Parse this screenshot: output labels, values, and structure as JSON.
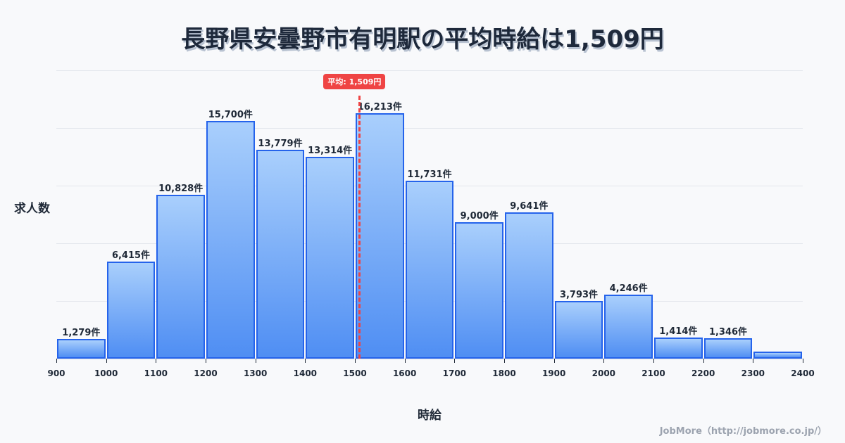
{
  "title": "長野県安曇野市有明駅の平均時給は1,509円",
  "y_axis_label": "求人数",
  "x_axis_label": "時給",
  "footer": "JobMore（http://jobmore.co.jp/）",
  "mean": {
    "value": 1509,
    "label": "平均: 1,509円",
    "color": "#ef4444"
  },
  "colors": {
    "bar_border": "#2563eb",
    "bar_top": "#a9cffc",
    "bar_bottom": "#4f8ef3",
    "background": "#f8f9fb"
  },
  "chart_data": {
    "type": "bar",
    "title": "長野県安曇野市有明駅の平均時給は1,509円",
    "xlabel": "時給",
    "ylabel": "求人数",
    "x_ticks": [
      900,
      1000,
      1100,
      1200,
      1300,
      1400,
      1500,
      1600,
      1700,
      1800,
      1900,
      2000,
      2100,
      2200,
      2300,
      2400
    ],
    "categories": [
      "900-1000",
      "1000-1100",
      "1100-1200",
      "1200-1300",
      "1300-1400",
      "1400-1500",
      "1500-1600",
      "1600-1700",
      "1700-1800",
      "1800-1900",
      "1900-2000",
      "2000-2100",
      "2100-2200",
      "2200-2300",
      "2300-2400"
    ],
    "values": [
      1279,
      6415,
      10828,
      15700,
      13779,
      13314,
      16213,
      11731,
      9000,
      9641,
      3793,
      4246,
      1414,
      1346,
      460
    ],
    "labels": [
      "1,279件",
      "6,415件",
      "10,828件",
      "15,700件",
      "13,779件",
      "13,314件",
      "16,213件",
      "11,731件",
      "9,000件",
      "9,641件",
      "3,793件",
      "4,246件",
      "1,414件",
      "1,346件",
      ""
    ],
    "xlim": [
      900,
      2400
    ],
    "ylim": [
      0,
      19000
    ],
    "grid": true,
    "annotations": [
      {
        "type": "vline",
        "x": 1509,
        "label": "平均: 1,509円"
      }
    ]
  }
}
